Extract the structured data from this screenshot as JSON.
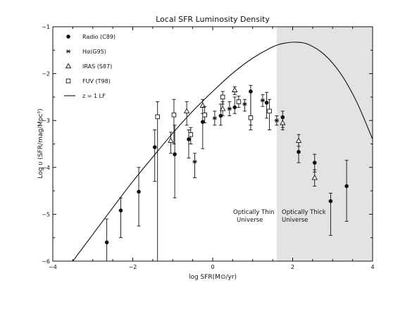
{
  "chart_data": {
    "type": "scatter",
    "title": "Local SFR Luminosity Density",
    "xlabel": "log SFR(M⊙/yr)",
    "ylabel": "Log υ (SFR/mag/Mpc³)",
    "xlim": [
      -4,
      4
    ],
    "ylim": [
      -6,
      -1
    ],
    "xticks": [
      -4,
      -2,
      0,
      2,
      4
    ],
    "xtick_labels": [
      "−4",
      "−2",
      "0",
      "2",
      "4"
    ],
    "yticks": [
      -6,
      -5,
      -4,
      -3,
      -2,
      -1
    ],
    "ytick_labels": [
      "−6",
      "−5",
      "−4",
      "−3",
      "−2",
      "−1"
    ],
    "shaded_region": {
      "x_from": 1.6,
      "x_to": 4,
      "color": "#e3e3e3"
    },
    "annotations": [
      {
        "text": [
          "Optically Thin",
          "Universe"
        ],
        "x": 0.5,
        "y": -4.95
      },
      {
        "text": [
          "Optically Thick",
          "Universe"
        ],
        "x": 1.72,
        "y": -4.95
      }
    ],
    "legend": {
      "position": "top-left",
      "entries": [
        {
          "label": "Radio (C89)",
          "marker": "filled-circle"
        },
        {
          "label": "Hα(G95)",
          "marker": "asterisk"
        },
        {
          "label": "IRAS (S87)",
          "marker": "open-triangle"
        },
        {
          "label": "FUV (T98)",
          "marker": "open-square"
        },
        {
          "label": "z = 1 LF",
          "marker": "line"
        }
      ]
    },
    "series": [
      {
        "name": "Radio (C89)",
        "marker": "filled-circle",
        "points": [
          {
            "x": -2.65,
            "y": -5.6,
            "ylo": -6.0,
            "yhi": -5.1
          },
          {
            "x": -2.3,
            "y": -4.92,
            "ylo": -5.5,
            "yhi": -4.65
          },
          {
            "x": -1.85,
            "y": -4.52,
            "ylo": -5.25,
            "yhi": -4.0
          },
          {
            "x": -1.45,
            "y": -3.57,
            "ylo": -4.3,
            "yhi": -3.2
          },
          {
            "x": -0.95,
            "y": -3.72,
            "ylo": -4.65,
            "yhi": -3.1
          },
          {
            "x": -0.6,
            "y": -3.4,
            "ylo": -3.8,
            "yhi": -3.2
          },
          {
            "x": -0.25,
            "y": -3.03,
            "ylo": -3.6,
            "yhi": -2.85
          },
          {
            "x": 0.2,
            "y": -2.9,
            "ylo": -3.1,
            "yhi": -2.65
          },
          {
            "x": 0.55,
            "y": -2.72,
            "ylo": -2.85,
            "yhi": -2.5
          },
          {
            "x": 0.95,
            "y": -2.38,
            "ylo": -3.1,
            "yhi": -2.25
          },
          {
            "x": 1.35,
            "y": -2.62,
            "ylo": -2.95,
            "yhi": -2.4
          },
          {
            "x": 1.75,
            "y": -2.93,
            "ylo": -3.2,
            "yhi": -2.8
          },
          {
            "x": 2.15,
            "y": -3.67,
            "ylo": -3.9,
            "yhi": -3.45
          },
          {
            "x": 2.55,
            "y": -3.9,
            "ylo": -4.1,
            "yhi": -3.72
          },
          {
            "x": 2.95,
            "y": -4.72,
            "ylo": -5.45,
            "yhi": -4.55
          },
          {
            "x": 3.35,
            "y": -4.4,
            "ylo": -5.15,
            "yhi": -3.85
          }
        ]
      },
      {
        "name": "Hα(G95)",
        "marker": "asterisk",
        "points": [
          {
            "x": -0.45,
            "y": -3.88,
            "ylo": -4.22,
            "yhi": -3.7
          },
          {
            "x": 0.05,
            "y": -2.95,
            "ylo": -3.1,
            "yhi": -2.8
          },
          {
            "x": 0.42,
            "y": -2.75,
            "ylo": -2.9,
            "yhi": -2.6
          },
          {
            "x": 0.8,
            "y": -2.65,
            "ylo": -2.8,
            "yhi": -2.55
          },
          {
            "x": 1.25,
            "y": -2.57,
            "ylo": -2.7,
            "yhi": -2.45
          },
          {
            "x": 1.6,
            "y": -3.0,
            "ylo": -3.1,
            "yhi": -2.9
          }
        ]
      },
      {
        "name": "IRAS (S87)",
        "marker": "open-triangle",
        "points": [
          {
            "x": -1.05,
            "y": -3.43,
            "ylo": -3.7,
            "yhi": -3.25
          },
          {
            "x": -0.65,
            "y": -2.8,
            "ylo": -3.1,
            "yhi": -2.6
          },
          {
            "x": -0.25,
            "y": -2.68,
            "ylo": -2.85,
            "yhi": -2.55
          },
          {
            "x": 0.25,
            "y": -2.75,
            "ylo": -2.9,
            "yhi": -2.6
          },
          {
            "x": 0.55,
            "y": -2.35,
            "ylo": -2.45,
            "yhi": -2.28
          },
          {
            "x": 1.75,
            "y": -3.05,
            "ylo": -3.15,
            "yhi": -2.95
          },
          {
            "x": 2.15,
            "y": -3.43,
            "ylo": -3.55,
            "yhi": -3.3
          },
          {
            "x": 2.55,
            "y": -4.22,
            "ylo": -4.4,
            "yhi": -4.05
          }
        ]
      },
      {
        "name": "FUV (T98)",
        "marker": "open-square",
        "points": [
          {
            "x": -1.38,
            "y": -2.92,
            "ylo": -6.0,
            "yhi": -2.6
          },
          {
            "x": -0.97,
            "y": -2.88,
            "ylo": -3.5,
            "yhi": -2.55
          },
          {
            "x": -0.55,
            "y": -3.3,
            "ylo": -3.5,
            "yhi": -3.15
          },
          {
            "x": -0.2,
            "y": -2.88,
            "ylo": -3.05,
            "yhi": -2.7
          },
          {
            "x": 0.25,
            "y": -2.5,
            "ylo": -2.65,
            "yhi": -2.38
          },
          {
            "x": 0.65,
            "y": -2.6,
            "ylo": -2.72,
            "yhi": -2.48
          },
          {
            "x": 0.95,
            "y": -2.94,
            "ylo": -3.2,
            "yhi": -2.4
          },
          {
            "x": 1.42,
            "y": -2.8,
            "ylo": -3.2,
            "yhi": -2.55
          }
        ]
      },
      {
        "name": "z = 1 LF",
        "marker": "line",
        "x": [
          -3.5,
          -3.0,
          -2.5,
          -2.0,
          -1.5,
          -1.0,
          -0.5,
          0.0,
          0.5,
          1.0,
          1.5,
          1.8,
          2.1,
          2.4,
          2.8,
          3.2,
          3.6,
          4.0
        ],
        "y": [
          -6.0,
          -5.43,
          -4.86,
          -4.3,
          -3.78,
          -3.27,
          -2.8,
          -2.38,
          -1.99,
          -1.67,
          -1.43,
          -1.35,
          -1.33,
          -1.38,
          -1.6,
          -2.0,
          -2.6,
          -3.4
        ]
      }
    ]
  }
}
